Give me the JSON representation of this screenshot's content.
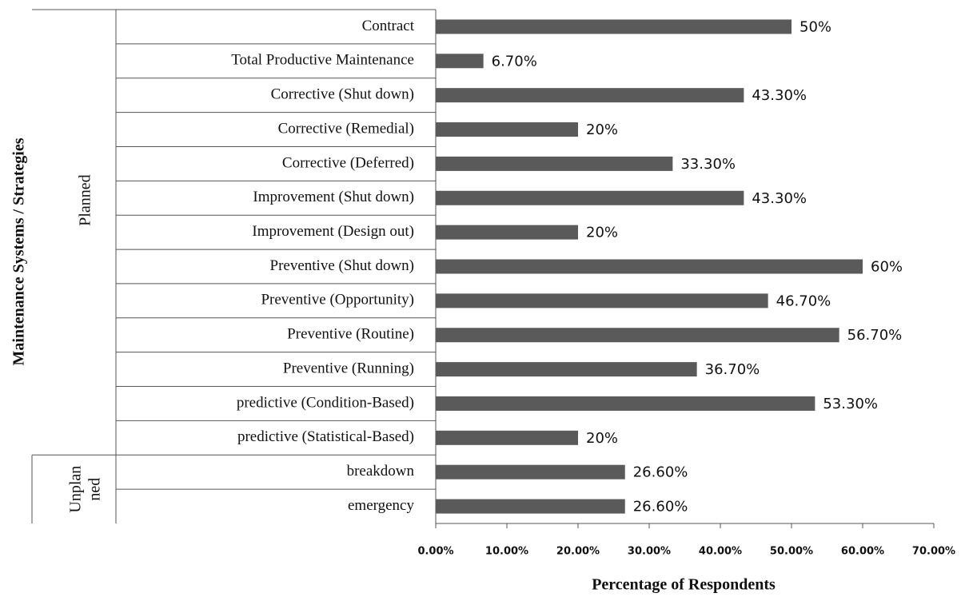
{
  "chart_data": {
    "type": "barh",
    "xlabel": "Percentage of Respondents",
    "ylabel": "Maintenance Systems / Strategies",
    "categories": [
      "Contract",
      "Total Productive Maintenance",
      "Corrective (Shut down)",
      "Corrective (Remedial)",
      "Corrective (Deferred)",
      "Improvement (Shut down)",
      "Improvement (Design out)",
      "Preventive (Shut down)",
      "Preventive (Opportunity)",
      "Preventive (Routine)",
      "Preventive (Running)",
      "predictive (Condition-Based)",
      "predictive (Statistical-Based)",
      "breakdown",
      "emergency"
    ],
    "values": [
      50,
      6.7,
      43.3,
      20,
      33.3,
      43.3,
      20,
      60,
      46.7,
      56.7,
      36.7,
      53.3,
      20,
      26.6,
      26.6
    ],
    "value_labels": [
      "50%",
      "6.70%",
      "43.30%",
      "20%",
      "33.30%",
      "43.30%",
      "20%",
      "60%",
      "46.70%",
      "56.70%",
      "36.70%",
      "53.30%",
      "20%",
      "26.60%",
      "26.60%"
    ],
    "color": "#5a5a5a",
    "groups": [
      {
        "lines": [
          "Planned"
        ],
        "size": 13
      },
      {
        "lines": [
          "Unplan",
          "ned"
        ],
        "size": 2
      }
    ],
    "xlim": [
      0,
      70
    ],
    "xticks": [
      {
        "value": 0,
        "label": "0.00%"
      },
      {
        "value": 10,
        "label": "10.00%"
      },
      {
        "value": 20,
        "label": "20.00%"
      },
      {
        "value": 30,
        "label": "30.00%"
      },
      {
        "value": 40,
        "label": "40.00%"
      },
      {
        "value": 50,
        "label": "50.00%"
      },
      {
        "value": 60,
        "label": "60.00%"
      },
      {
        "value": 70,
        "label": "70.00%"
      }
    ]
  }
}
